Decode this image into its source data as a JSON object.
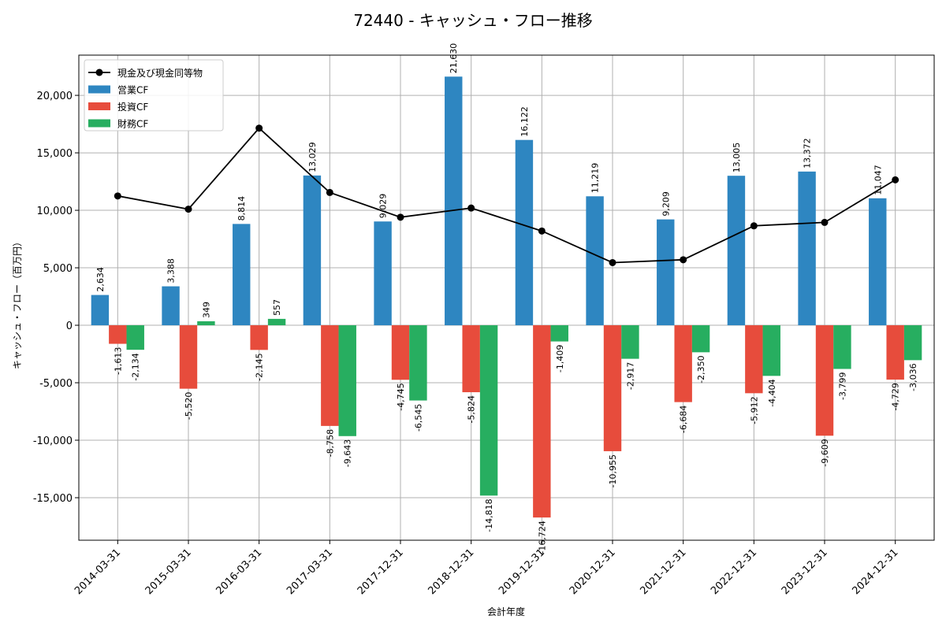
{
  "chart_data": {
    "type": "bar",
    "title": "72440 - キャッシュ・フロー推移",
    "xlabel": "会計年度",
    "ylabel": "キャッシュ・フロー（百万円）",
    "ylim": [
      -18700,
      23500
    ],
    "yticks": [
      -15000,
      -10000,
      -5000,
      0,
      5000,
      10000,
      15000,
      20000
    ],
    "ytick_labels": [
      "-15,000",
      "-10,000",
      "-5,000",
      "0",
      "5,000",
      "10,000",
      "15,000",
      "20,000"
    ],
    "grid": true,
    "legend_position": "top-left",
    "categories": [
      "2014-03-31",
      "2015-03-31",
      "2016-03-31",
      "2017-03-31",
      "2017-12-31",
      "2018-12-31",
      "2019-12-31",
      "2020-12-31",
      "2021-12-31",
      "2022-12-31",
      "2023-12-31",
      "2024-12-31"
    ],
    "series": [
      {
        "name": "営業CF",
        "kind": "bar",
        "color": "#2e86c1",
        "values": [
          2634,
          3388,
          8814,
          13029,
          9029,
          21630,
          16122,
          11219,
          9209,
          13005,
          13372,
          11047
        ],
        "labels": [
          "2,634",
          "3,388",
          "8,814",
          "13,029",
          "9,029",
          "21,630",
          "16,122",
          "11,219",
          "9,209",
          "13,005",
          "13,372",
          "11,047"
        ]
      },
      {
        "name": "投資CF",
        "kind": "bar",
        "color": "#e74c3c",
        "values": [
          -1613,
          -5520,
          -2145,
          -8758,
          -4745,
          -5824,
          -16724,
          -10955,
          -6684,
          -5912,
          -9609,
          -4729
        ],
        "labels": [
          "-1,613",
          "-5,520",
          "-2,145",
          "-8,758",
          "-4,745",
          "-5,824",
          "-16,724",
          "-10,955",
          "-6,684",
          "-5,912",
          "-9,609",
          "-4,729"
        ]
      },
      {
        "name": "財務CF",
        "kind": "bar",
        "color": "#27ae60",
        "values": [
          -2134,
          349,
          557,
          -9643,
          -6545,
          -14818,
          -1409,
          -2917,
          -2350,
          -4404,
          -3799,
          -3036
        ],
        "labels": [
          "-2,134",
          "349",
          "557",
          "-9,643",
          "-6,545",
          "-14,818",
          "-1,409",
          "-2,917",
          "-2,350",
          "-4,404",
          "-3,799",
          "-3,036"
        ]
      },
      {
        "name": "現金及び現金同等物",
        "kind": "line",
        "color": "#000000",
        "values": [
          11250,
          10100,
          17150,
          11550,
          9400,
          10200,
          8200,
          5450,
          5700,
          8650,
          8950,
          12650
        ]
      }
    ]
  }
}
